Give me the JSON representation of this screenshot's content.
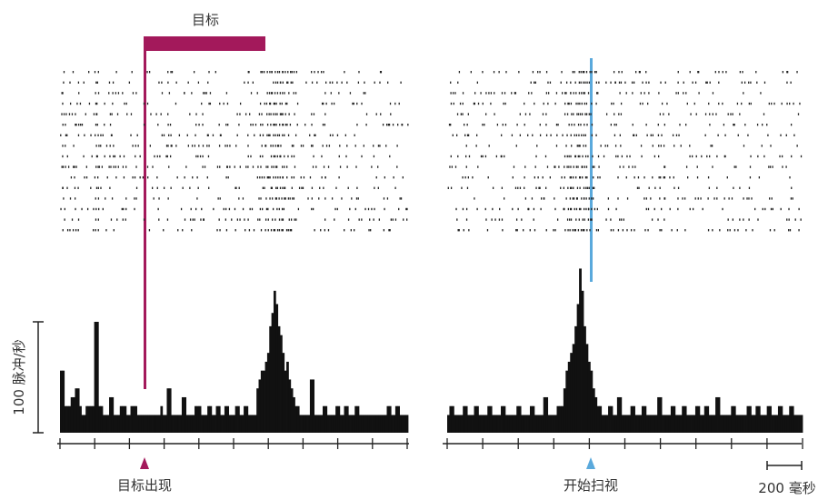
{
  "labels": {
    "target_bar": "目标",
    "target_onset": "目标出现",
    "saccade_onset": "开始扫视",
    "scale_bar": "200 毫秒",
    "ylabel": "100 脉冲/秒"
  },
  "colors": {
    "target": "#a3195b",
    "saccade": "#5aa9dc",
    "raster": "#222222",
    "histogram": "#111111",
    "axis": "#222222",
    "text": "#333333"
  },
  "chart_data": [
    {
      "type": "raster+histogram",
      "alignment": "target onset",
      "marker_label": "目标出现",
      "top_bar_label": "目标",
      "ylabel": "100 脉冲/秒",
      "ylim": [
        0,
        150
      ],
      "trials": 16,
      "histogram_values": [
        56,
        56,
        24,
        24,
        24,
        32,
        32,
        40,
        40,
        24,
        16,
        16,
        24,
        24,
        24,
        24,
        100,
        100,
        24,
        24,
        16,
        16,
        16,
        32,
        32,
        16,
        16,
        16,
        24,
        24,
        24,
        16,
        16,
        24,
        24,
        24,
        16,
        16,
        16,
        16,
        16,
        16,
        16,
        16,
        16,
        16,
        16,
        24,
        16,
        16,
        40,
        40,
        16,
        16,
        16,
        16,
        16,
        32,
        32,
        16,
        16,
        16,
        16,
        24,
        24,
        24,
        16,
        16,
        16,
        24,
        24,
        16,
        16,
        24,
        24,
        16,
        16,
        24,
        24,
        16,
        16,
        16,
        24,
        24,
        16,
        16,
        24,
        24,
        16,
        16,
        16,
        16,
        40,
        48,
        56,
        56,
        64,
        72,
        96,
        108,
        128,
        116,
        96,
        88,
        72,
        56,
        64,
        48,
        40,
        32,
        24,
        24,
        16,
        16,
        16,
        16,
        16,
        48,
        48,
        16,
        16,
        16,
        16,
        24,
        24,
        16,
        16,
        16,
        16,
        24,
        24,
        16,
        16,
        24,
        24,
        16,
        16,
        16,
        24,
        24,
        16,
        16,
        16,
        16,
        16,
        16,
        16,
        16,
        16,
        16,
        16,
        16,
        16,
        24,
        24,
        16,
        16,
        24,
        24,
        16,
        16,
        16,
        16
      ]
    },
    {
      "type": "raster+histogram",
      "alignment": "saccade onset",
      "marker_label": "开始扫视",
      "trials": 16,
      "histogram_values": [
        16,
        24,
        24,
        16,
        16,
        16,
        16,
        24,
        24,
        16,
        16,
        16,
        24,
        24,
        16,
        16,
        16,
        16,
        24,
        24,
        16,
        16,
        16,
        16,
        24,
        24,
        16,
        16,
        16,
        16,
        16,
        24,
        24,
        16,
        16,
        16,
        16,
        24,
        24,
        16,
        16,
        16,
        16,
        32,
        32,
        16,
        16,
        16,
        16,
        24,
        24,
        24,
        40,
        56,
        64,
        72,
        80,
        96,
        116,
        148,
        128,
        96,
        80,
        64,
        56,
        40,
        32,
        24,
        24,
        16,
        16,
        16,
        24,
        24,
        16,
        16,
        32,
        32,
        16,
        16,
        16,
        16,
        24,
        24,
        16,
        16,
        16,
        24,
        24,
        16,
        16,
        16,
        16,
        16,
        32,
        32,
        16,
        16,
        16,
        16,
        24,
        24,
        16,
        16,
        16,
        24,
        24,
        16,
        16,
        16,
        16,
        24,
        24,
        16,
        16,
        24,
        24,
        16,
        16,
        16,
        32,
        32,
        16,
        16,
        16,
        16,
        16,
        24,
        24,
        16,
        16,
        16,
        16,
        16,
        24,
        24,
        16,
        16,
        24,
        24,
        16,
        16,
        16,
        24,
        24,
        16,
        16,
        16,
        24,
        24,
        16,
        16,
        16,
        24,
        24,
        16,
        16,
        16,
        16
      ]
    }
  ]
}
